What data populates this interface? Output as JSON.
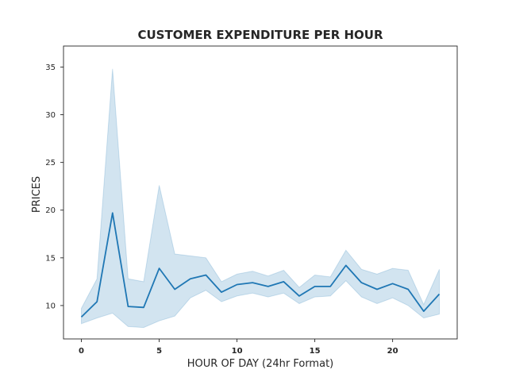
{
  "chart_data": {
    "type": "line",
    "title": "CUSTOMER EXPENDITURE PER HOUR",
    "xlabel": "HOUR OF DAY (24hr Format)",
    "ylabel": "PRICES",
    "xlim": [
      -1.15,
      24.15
    ],
    "ylim": [
      6.5,
      37.2
    ],
    "x_ticks": [
      0,
      5,
      10,
      15,
      20
    ],
    "y_ticks": [
      10,
      15,
      20,
      25,
      30,
      35
    ],
    "grid": false,
    "legend": "none",
    "series": [
      {
        "color": "#1f77b4",
        "band_color": "#1f77b4",
        "x": [
          0,
          1,
          2,
          3,
          4,
          5,
          6,
          7,
          8,
          9,
          10,
          11,
          12,
          13,
          14,
          15,
          16,
          17,
          18,
          19,
          20,
          21,
          22,
          23
        ],
        "y": [
          8.8,
          10.4,
          19.7,
          9.9,
          9.8,
          13.9,
          11.7,
          12.8,
          13.2,
          11.4,
          12.2,
          12.4,
          12.0,
          12.5,
          11.0,
          12.0,
          12.0,
          14.2,
          12.4,
          11.7,
          12.3,
          11.7,
          9.4,
          11.2
        ],
        "lower": [
          8.1,
          8.7,
          9.2,
          7.8,
          7.7,
          8.4,
          8.9,
          10.8,
          11.6,
          10.4,
          11.0,
          11.3,
          10.9,
          11.3,
          10.2,
          10.9,
          11.0,
          12.6,
          10.9,
          10.2,
          10.8,
          10.0,
          8.7,
          9.1
        ],
        "upper": [
          9.7,
          12.8,
          34.8,
          12.8,
          12.5,
          22.6,
          15.4,
          15.2,
          15.0,
          12.5,
          13.3,
          13.6,
          13.1,
          13.7,
          11.9,
          13.2,
          13.0,
          15.8,
          13.8,
          13.3,
          13.9,
          13.7,
          10.1,
          13.8
        ]
      }
    ]
  }
}
